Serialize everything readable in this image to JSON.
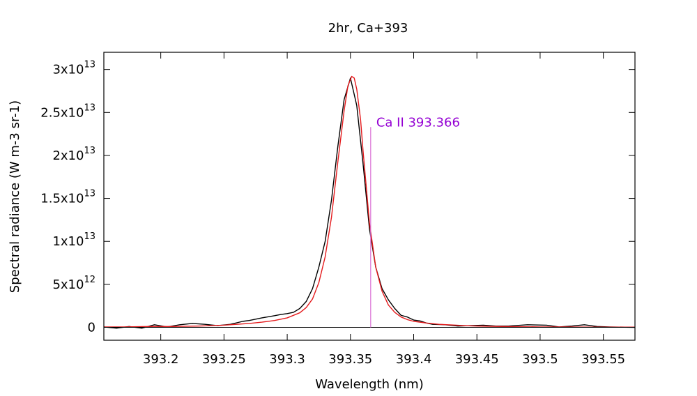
{
  "chart_data": {
    "type": "line",
    "title": "2hr, Ca+393",
    "xlabel": "Wavelength (nm)",
    "ylabel": "Spectral radiance (W m-3 sr-1)",
    "xlim": [
      393.155,
      393.575
    ],
    "ylim": [
      -1500000000000.0,
      32000000000000.0
    ],
    "x_ticks": [
      {
        "value": 393.2,
        "label": "393.2"
      },
      {
        "value": 393.25,
        "label": "393.25"
      },
      {
        "value": 393.3,
        "label": "393.3"
      },
      {
        "value": 393.35,
        "label": "393.35"
      },
      {
        "value": 393.4,
        "label": "393.4"
      },
      {
        "value": 393.45,
        "label": "393.45"
      },
      {
        "value": 393.5,
        "label": "393.5"
      },
      {
        "value": 393.55,
        "label": "393.55"
      }
    ],
    "y_ticks": [
      {
        "value": 0,
        "mantissa": "0",
        "exponent": ""
      },
      {
        "value": 5000000000000.0,
        "mantissa": "5x10",
        "exponent": "12"
      },
      {
        "value": 10000000000000.0,
        "mantissa": "1x10",
        "exponent": "13"
      },
      {
        "value": 15000000000000.0,
        "mantissa": "1.5x10",
        "exponent": "13"
      },
      {
        "value": 20000000000000.0,
        "mantissa": "2x10",
        "exponent": "13"
      },
      {
        "value": 25000000000000.0,
        "mantissa": "2.5x10",
        "exponent": "13"
      },
      {
        "value": 30000000000000.0,
        "mantissa": "3x10",
        "exponent": "13"
      }
    ],
    "grid": false,
    "series": [
      {
        "color": "#000000",
        "x": [
          393.155,
          393.165,
          393.175,
          393.185,
          393.195,
          393.205,
          393.215,
          393.225,
          393.235,
          393.245,
          393.255,
          393.265,
          393.27,
          393.28,
          393.29,
          393.295,
          393.3,
          393.305,
          393.31,
          393.315,
          393.32,
          393.325,
          393.33,
          393.335,
          393.34,
          393.345,
          393.35,
          393.355,
          393.36,
          393.365,
          393.37,
          393.375,
          393.38,
          393.385,
          393.39,
          393.395,
          393.4,
          393.405,
          393.41,
          393.415,
          393.425,
          393.435,
          393.445,
          393.455,
          393.465,
          393.475,
          393.49,
          393.505,
          393.515,
          393.525,
          393.535,
          393.545,
          393.555,
          393.575
        ],
        "y": [
          50000000000.0,
          -100000000000.0,
          100000000000.0,
          -100000000000.0,
          300000000000.0,
          50000000000.0,
          300000000000.0,
          450000000000.0,
          350000000000.0,
          200000000000.0,
          350000000000.0,
          700000000000.0,
          800000000000.0,
          1100000000000.0,
          1350000000000.0,
          1500000000000.0,
          1600000000000.0,
          1750000000000.0,
          2200000000000.0,
          3000000000000.0,
          4500000000000.0,
          7000000000000.0,
          10000000000000.0,
          14800000000000.0,
          21000000000000.0,
          26500000000000.0,
          29000000000000.0,
          25800000000000.0,
          19000000000000.0,
          11500000000000.0,
          7000000000000.0,
          4500000000000.0,
          3200000000000.0,
          2200000000000.0,
          1400000000000.0,
          1200000000000.0,
          850000000000.0,
          750000000000.0,
          500000000000.0,
          350000000000.0,
          300000000000.0,
          150000000000.0,
          200000000000.0,
          250000000000.0,
          150000000000.0,
          150000000000.0,
          300000000000.0,
          250000000000.0,
          50000000000.0,
          150000000000.0,
          300000000000.0,
          100000000000.0,
          50000000000.0,
          0.0
        ]
      },
      {
        "color": "#e41a1c",
        "x": [
          393.155,
          393.17,
          393.19,
          393.21,
          393.23,
          393.25,
          393.26,
          393.27,
          393.28,
          393.29,
          393.3,
          393.31,
          393.315,
          393.32,
          393.325,
          393.33,
          393.335,
          393.34,
          393.345,
          393.348,
          393.351,
          393.353,
          393.355,
          393.358,
          393.36,
          393.365,
          393.37,
          393.375,
          393.38,
          393.385,
          393.39,
          393.395,
          393.4,
          393.41,
          393.42,
          393.43,
          393.44,
          393.45,
          393.46,
          393.48,
          393.5,
          393.52,
          393.54,
          393.56,
          393.575
        ],
        "y": [
          50000000000.0,
          50000000000.0,
          100000000000.0,
          100000000000.0,
          150000000000.0,
          250000000000.0,
          350000000000.0,
          450000000000.0,
          600000000000.0,
          800000000000.0,
          1100000000000.0,
          1700000000000.0,
          2300000000000.0,
          3300000000000.0,
          5200000000000.0,
          8200000000000.0,
          12800000000000.0,
          19200000000000.0,
          25200000000000.0,
          28100000000000.0,
          29200000000000.0,
          29000000000000.0,
          27700000000000.0,
          24200000000000.0,
          20500000000000.0,
          12200000000000.0,
          7000000000000.0,
          4200000000000.0,
          2600000000000.0,
          1750000000000.0,
          1200000000000.0,
          900000000000.0,
          700000000000.0,
          500000000000.0,
          350000000000.0,
          280000000000.0,
          200000000000.0,
          150000000000.0,
          120000000000.0,
          80000000000.0,
          50000000000.0,
          40000000000.0,
          30000000000.0,
          20000000000.0,
          20000000000.0
        ]
      }
    ],
    "annotations": [
      {
        "text": "Ca II 393.366",
        "x": 393.366,
        "y_top": 23300000000000.0,
        "color": "#9400d3",
        "line_color": "#da70d6"
      }
    ]
  }
}
